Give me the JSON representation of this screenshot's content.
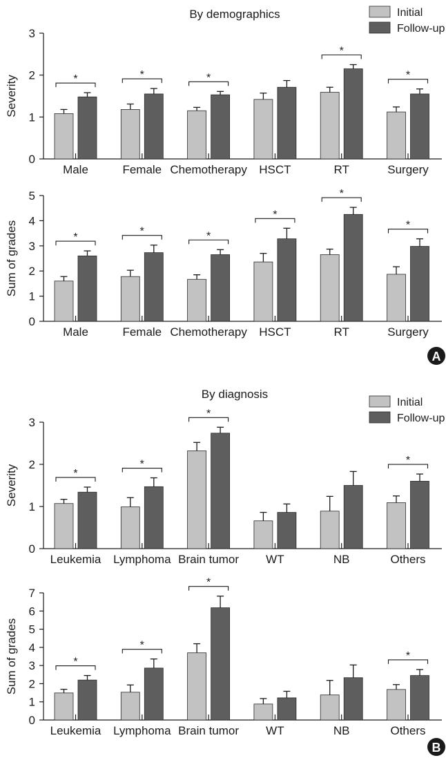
{
  "colors": {
    "initial": "#c2c2c2",
    "followup": "#5e5e5e",
    "axis": "#1a1a1a",
    "badge": "#1a1a1a"
  },
  "panels": [
    {
      "label": "A",
      "title": "By demographics"
    },
    {
      "label": "B",
      "title": "By diagnosis"
    }
  ],
  "legend": [
    "Initial",
    "Follow-up"
  ],
  "chart_data": [
    {
      "type": "bar",
      "panel": "A",
      "title": "By demographics",
      "ylabel": "Severity",
      "ylim": [
        0,
        3
      ],
      "yticks": [
        0,
        1,
        2,
        3
      ],
      "categories": [
        "Male",
        "Female",
        "Chemotherapy",
        "HSCT",
        "RT",
        "Surgery"
      ],
      "series": [
        {
          "name": "Initial",
          "values": [
            1.08,
            1.18,
            1.15,
            1.42,
            1.59,
            1.12
          ],
          "errors": [
            0.1,
            0.13,
            0.08,
            0.15,
            0.12,
            0.12
          ]
        },
        {
          "name": "Follow-up",
          "values": [
            1.48,
            1.55,
            1.53,
            1.71,
            2.15,
            1.55
          ],
          "errors": [
            0.1,
            0.13,
            0.08,
            0.16,
            0.1,
            0.12
          ]
        }
      ],
      "significance": [
        true,
        true,
        true,
        false,
        true,
        true
      ],
      "significance_marker": "*"
    },
    {
      "type": "bar",
      "panel": "A",
      "ylabel": "Sum of grades",
      "ylim": [
        0,
        5
      ],
      "yticks": [
        0,
        1,
        2,
        3,
        4,
        5
      ],
      "categories": [
        "Male",
        "Female",
        "Chemotherapy",
        "HSCT",
        "RT",
        "Surgery"
      ],
      "series": [
        {
          "name": "Initial",
          "values": [
            1.6,
            1.78,
            1.67,
            2.36,
            2.65,
            1.87
          ],
          "errors": [
            0.18,
            0.25,
            0.18,
            0.34,
            0.22,
            0.3
          ]
        },
        {
          "name": "Follow-up",
          "values": [
            2.6,
            2.73,
            2.65,
            3.28,
            4.25,
            2.98
          ],
          "errors": [
            0.2,
            0.3,
            0.2,
            0.42,
            0.28,
            0.3
          ]
        }
      ],
      "significance": [
        true,
        true,
        true,
        true,
        true,
        true
      ],
      "significance_marker": "*"
    },
    {
      "type": "bar",
      "panel": "B",
      "title": "By diagnosis",
      "ylabel": "Severity",
      "ylim": [
        0,
        3
      ],
      "yticks": [
        0,
        1,
        2,
        3
      ],
      "categories": [
        "Leukemia",
        "Lymphoma",
        "Brain tumor",
        "WT",
        "NB",
        "Others"
      ],
      "series": [
        {
          "name": "Initial",
          "values": [
            1.07,
            0.99,
            2.32,
            0.66,
            0.89,
            1.09
          ],
          "errors": [
            0.1,
            0.22,
            0.2,
            0.2,
            0.35,
            0.16
          ]
        },
        {
          "name": "Follow-up",
          "values": [
            1.34,
            1.47,
            2.74,
            0.86,
            1.5,
            1.6
          ],
          "errors": [
            0.12,
            0.21,
            0.14,
            0.2,
            0.33,
            0.17
          ]
        }
      ],
      "significance": [
        true,
        true,
        true,
        false,
        false,
        true
      ],
      "significance_marker": "*"
    },
    {
      "type": "bar",
      "panel": "B",
      "ylabel": "Sum of grades",
      "ylim": [
        0,
        7
      ],
      "yticks": [
        0,
        1,
        2,
        3,
        4,
        5,
        6,
        7
      ],
      "categories": [
        "Leukemia",
        "Lymphoma",
        "Brain tumor",
        "WT",
        "NB",
        "Others"
      ],
      "series": [
        {
          "name": "Initial",
          "values": [
            1.49,
            1.53,
            3.7,
            0.88,
            1.38,
            1.68
          ],
          "errors": [
            0.2,
            0.4,
            0.5,
            0.3,
            0.8,
            0.27
          ]
        },
        {
          "name": "Follow-up",
          "values": [
            2.2,
            2.86,
            6.18,
            1.22,
            2.33,
            2.45
          ],
          "errors": [
            0.25,
            0.5,
            0.64,
            0.36,
            0.7,
            0.33
          ]
        }
      ],
      "significance": [
        true,
        true,
        true,
        false,
        false,
        true
      ],
      "significance_marker": "*"
    }
  ]
}
